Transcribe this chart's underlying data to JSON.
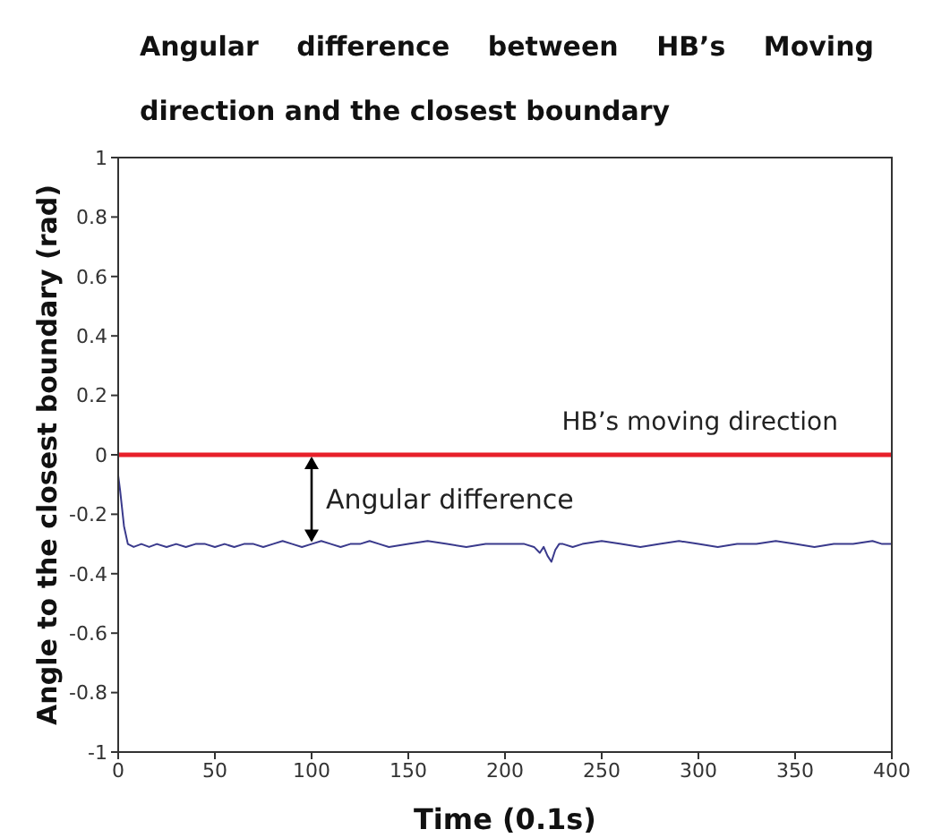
{
  "chart_data": {
    "type": "line",
    "title": "Angular difference between HB’s Moving direction and the closest boundary",
    "xlabel": "Time (0.1s)",
    "ylabel": "Angle to the closest boundary (rad)",
    "xlim": [
      0,
      400
    ],
    "xticks": [
      0,
      50,
      100,
      150,
      200,
      250,
      300,
      350,
      400
    ],
    "ylim": [
      -1,
      1
    ],
    "yticks": [
      -1,
      -0.8,
      -0.6,
      -0.4,
      -0.2,
      0,
      0.2,
      0.4,
      0.6,
      0.8,
      1
    ],
    "grid": false,
    "legend": false,
    "marker": "none",
    "annotations": [
      {
        "text": "Angular difference",
        "x": 100,
        "y": -0.3
      }
    ],
    "series": [
      {
        "name": "HB’s moving direction",
        "color": "#e8202a",
        "x": [
          0,
          400
        ],
        "values": [
          0,
          0
        ]
      },
      {
        "color": "#3a3a8c",
        "x": [
          0,
          1,
          3,
          5,
          8,
          12,
          16,
          20,
          25,
          30,
          35,
          40,
          45,
          50,
          55,
          60,
          65,
          70,
          75,
          80,
          85,
          90,
          95,
          100,
          105,
          110,
          115,
          120,
          125,
          130,
          135,
          140,
          150,
          160,
          170,
          180,
          190,
          200,
          210,
          215,
          218,
          220,
          222,
          224,
          226,
          228,
          230,
          235,
          240,
          250,
          260,
          270,
          280,
          290,
          300,
          310,
          320,
          330,
          340,
          350,
          360,
          370,
          380,
          390,
          395,
          400
        ],
        "values": [
          -0.07,
          -0.12,
          -0.24,
          -0.3,
          -0.31,
          -0.3,
          -0.31,
          -0.3,
          -0.31,
          -0.3,
          -0.31,
          -0.3,
          -0.3,
          -0.31,
          -0.3,
          -0.31,
          -0.3,
          -0.3,
          -0.31,
          -0.3,
          -0.29,
          -0.3,
          -0.31,
          -0.3,
          -0.29,
          -0.3,
          -0.31,
          -0.3,
          -0.3,
          -0.29,
          -0.3,
          -0.31,
          -0.3,
          -0.29,
          -0.3,
          -0.31,
          -0.3,
          -0.3,
          -0.3,
          -0.31,
          -0.33,
          -0.31,
          -0.34,
          -0.36,
          -0.32,
          -0.3,
          -0.3,
          -0.31,
          -0.3,
          -0.29,
          -0.3,
          -0.31,
          -0.3,
          -0.29,
          -0.3,
          -0.31,
          -0.3,
          -0.3,
          -0.29,
          -0.3,
          -0.31,
          -0.3,
          -0.3,
          -0.29,
          -0.3,
          -0.3
        ]
      }
    ]
  }
}
